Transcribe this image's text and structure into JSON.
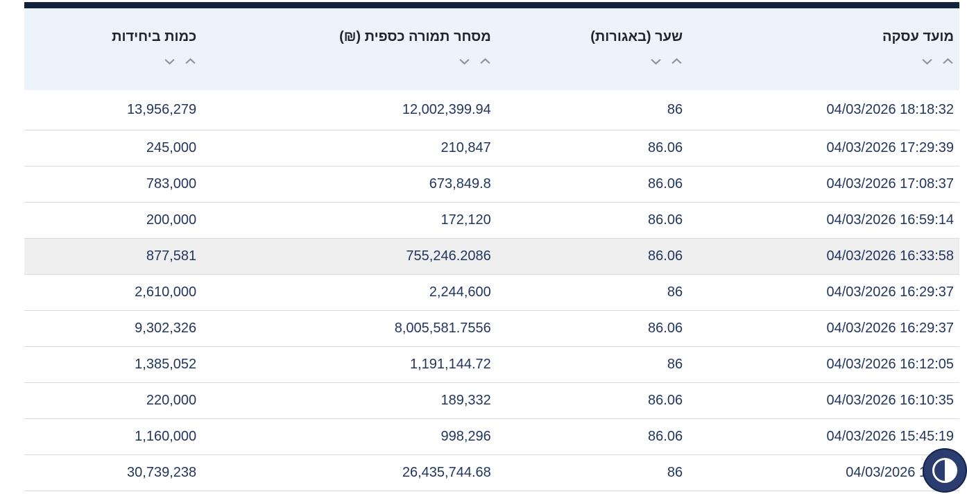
{
  "table": {
    "columns": [
      {
        "id": "datetime",
        "label": "מועד עסקה"
      },
      {
        "id": "rate",
        "label": "שער (באגורות)"
      },
      {
        "id": "turnover",
        "label": "מסחר תמורה כספית (₪)"
      },
      {
        "id": "quantity",
        "label": "כמות ביחידות"
      }
    ],
    "rows": [
      {
        "datetime": "04/03/2026 18:18:32",
        "rate": "86",
        "turnover": "12,002,399.94",
        "quantity": "13,956,279"
      },
      {
        "datetime": "04/03/2026 17:29:39",
        "rate": "86.06",
        "turnover": "210,847",
        "quantity": "245,000"
      },
      {
        "datetime": "04/03/2026 17:08:37",
        "rate": "86.06",
        "turnover": "673,849.8",
        "quantity": "783,000"
      },
      {
        "datetime": "04/03/2026 16:59:14",
        "rate": "86.06",
        "turnover": "172,120",
        "quantity": "200,000"
      },
      {
        "datetime": "04/03/2026 16:33:58",
        "rate": "86.06",
        "turnover": "755,246.2086",
        "quantity": "877,581"
      },
      {
        "datetime": "04/03/2026 16:29:37",
        "rate": "86",
        "turnover": "2,244,600",
        "quantity": "2,610,000"
      },
      {
        "datetime": "04/03/2026 16:29:37",
        "rate": "86.06",
        "turnover": "8,005,581.7556",
        "quantity": "9,302,326"
      },
      {
        "datetime": "04/03/2026 16:12:05",
        "rate": "86",
        "turnover": "1,191,144.72",
        "quantity": "1,385,052"
      },
      {
        "datetime": "04/03/2026 16:10:35",
        "rate": "86.06",
        "turnover": "189,332",
        "quantity": "220,000"
      },
      {
        "datetime": "04/03/2026 15:45:19",
        "rate": "86.06",
        "turnover": "998,296",
        "quantity": "1,160,000"
      },
      {
        "datetime": "04/03/2026 13:50",
        "rate": "86",
        "turnover": "26,435,744.68",
        "quantity": "30,739,238"
      }
    ],
    "highlighted_row_index": 4,
    "sort_icons": [
      "chevron-down-icon",
      "chevron-up-icon"
    ]
  },
  "widgets": {
    "accessibility_button_icon": "contrast-icon"
  },
  "colors": {
    "top_border": "#14213d",
    "header_bg": "#edf3fa",
    "header_text": "#1f2430",
    "cell_text": "#21365f",
    "row_divider": "#dadada",
    "highlight_bg": "#efefef",
    "sort_arrow": "#8d94a4",
    "accessibility_bg": "#2b3c6e"
  }
}
